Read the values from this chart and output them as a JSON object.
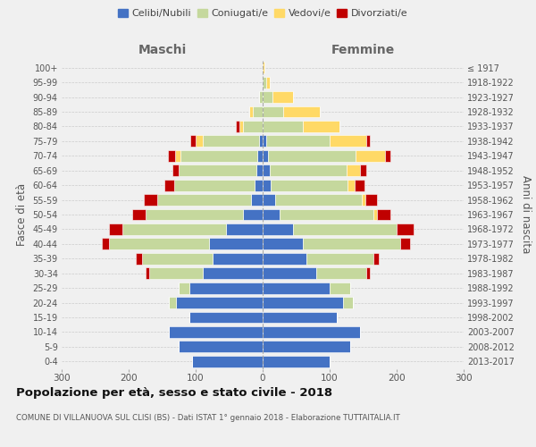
{
  "age_groups": [
    "100+",
    "95-99",
    "90-94",
    "85-89",
    "80-84",
    "75-79",
    "70-74",
    "65-69",
    "60-64",
    "55-59",
    "50-54",
    "45-49",
    "40-44",
    "35-39",
    "30-34",
    "25-29",
    "20-24",
    "15-19",
    "10-14",
    "5-9",
    "0-4"
  ],
  "birth_years": [
    "≤ 1917",
    "1918-1922",
    "1923-1927",
    "1928-1932",
    "1933-1937",
    "1938-1942",
    "1943-1947",
    "1948-1952",
    "1953-1957",
    "1958-1962",
    "1963-1967",
    "1968-1972",
    "1973-1977",
    "1978-1982",
    "1983-1987",
    "1988-1992",
    "1993-1997",
    "1998-2002",
    "2003-2007",
    "2008-2012",
    "2013-2017"
  ],
  "male": {
    "celibi": [
      0,
      0,
      0,
      0,
      0,
      5,
      8,
      10,
      12,
      18,
      30,
      55,
      80,
      75,
      90,
      110,
      130,
      110,
      140,
      125,
      105
    ],
    "coniugati": [
      0,
      0,
      5,
      15,
      30,
      85,
      115,
      115,
      120,
      140,
      145,
      155,
      150,
      105,
      80,
      15,
      10,
      0,
      0,
      0,
      0
    ],
    "vedovi": [
      0,
      0,
      0,
      5,
      5,
      10,
      8,
      0,
      0,
      0,
      0,
      0,
      0,
      0,
      0,
      0,
      0,
      0,
      0,
      0,
      0
    ],
    "divorziati": [
      0,
      0,
      0,
      0,
      5,
      8,
      10,
      10,
      15,
      20,
      20,
      20,
      10,
      10,
      5,
      0,
      0,
      0,
      0,
      0,
      0
    ]
  },
  "female": {
    "celibi": [
      0,
      0,
      0,
      0,
      0,
      5,
      8,
      10,
      12,
      18,
      25,
      45,
      60,
      65,
      80,
      100,
      120,
      110,
      145,
      130,
      100
    ],
    "coniugati": [
      0,
      5,
      15,
      30,
      60,
      95,
      130,
      115,
      115,
      130,
      140,
      155,
      145,
      100,
      75,
      30,
      15,
      0,
      0,
      0,
      0
    ],
    "vedovi": [
      2,
      5,
      30,
      55,
      55,
      55,
      45,
      20,
      10,
      5,
      5,
      0,
      0,
      0,
      0,
      0,
      0,
      0,
      0,
      0,
      0
    ],
    "divorziati": [
      0,
      0,
      0,
      0,
      0,
      5,
      8,
      10,
      15,
      18,
      20,
      25,
      15,
      8,
      5,
      0,
      0,
      0,
      0,
      0,
      0
    ]
  },
  "colors": {
    "celibi": "#4472C4",
    "coniugati": "#C5D89D",
    "vedovi": "#FFD966",
    "divorziati": "#C00000"
  },
  "title": "Popolazione per età, sesso e stato civile - 2018",
  "subtitle": "COMUNE DI VILLANUOVA SUL CLISI (BS) - Dati ISTAT 1° gennaio 2018 - Elaborazione TUTTAITALIA.IT",
  "xlabel_left": "Maschi",
  "xlabel_right": "Femmine",
  "ylabel_left": "Fasce di età",
  "ylabel_right": "Anni di nascita",
  "xlim": 300,
  "bg_color": "#f0f0f0",
  "grid_color": "#cccccc"
}
